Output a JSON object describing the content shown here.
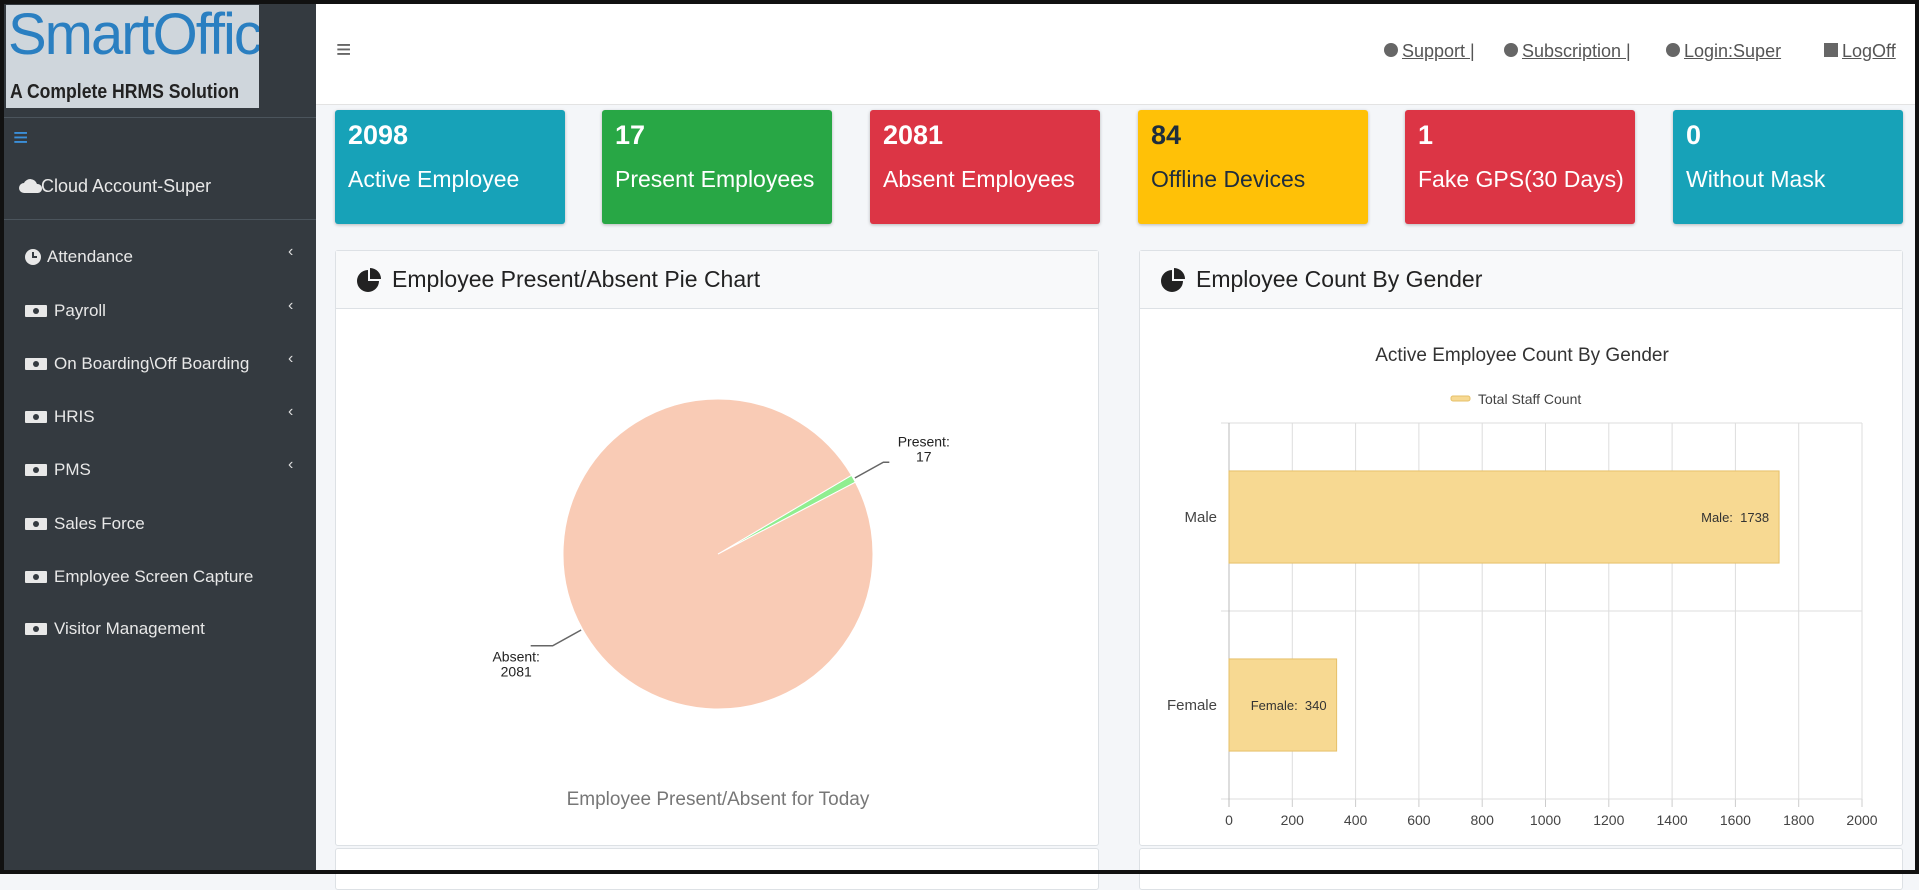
{
  "logo": {
    "title": "SmartOffice",
    "subtitle": "A Complete HRMS Solution"
  },
  "topbar": {
    "links": [
      "Support |",
      "Subscription |",
      "Login:Super",
      "LogOff"
    ]
  },
  "sidebar": {
    "account": "Cloud Account-Super",
    "menu": [
      "Attendance",
      "Payroll",
      "On Boarding\\Off Boarding",
      "HRIS",
      "PMS",
      "Sales Force",
      "Employee Screen Capture",
      "Visitor Management"
    ]
  },
  "cards": [
    {
      "value": 2098,
      "label": "Active Employee"
    },
    {
      "value": 17,
      "label": "Present Employees"
    },
    {
      "value": 2081,
      "label": "Absent Employees"
    },
    {
      "value": 84,
      "label": "Offline Devices"
    },
    {
      "value": 1,
      "label": "Fake GPS(30 Days)"
    },
    {
      "value": 0,
      "label": "Without Mask"
    }
  ],
  "panels": [
    {
      "title": "Employee Present/Absent Pie Chart"
    },
    {
      "title": "Employee Count By Gender"
    }
  ],
  "chart_data": [
    {
      "type": "pie",
      "categories": [
        "Present:",
        "Absent:"
      ],
      "values": [
        17,
        2081
      ],
      "colors": [
        "#90ee90",
        "#f9cbb5"
      ],
      "caption": "Employee Present/Absent for Today"
    },
    {
      "type": "hbar",
      "title": "Active Employee Count By Gender",
      "categories": [
        "Male",
        "Female"
      ],
      "series": [
        {
          "name": "Total Staff Count",
          "color": "#f7d992",
          "values": [
            1738,
            340
          ],
          "value_labels": [
            "Male:  1738",
            "Female:  340"
          ]
        }
      ],
      "xlim": [
        0,
        2000
      ],
      "xticks": [
        0,
        200,
        400,
        600,
        800,
        1000,
        1200,
        1400,
        1600,
        1800,
        2000
      ],
      "grid": true,
      "legend": "top"
    }
  ]
}
